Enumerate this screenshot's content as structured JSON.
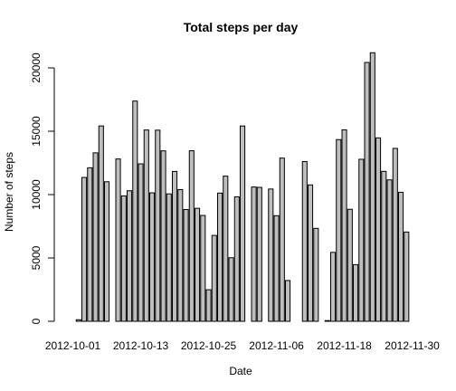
{
  "chart_data": {
    "type": "bar",
    "title": "Total steps per day",
    "xlabel": "Date",
    "ylabel": "Number of steps",
    "ylim": [
      0,
      21500
    ],
    "yticks": [
      0,
      5000,
      10000,
      15000,
      20000
    ],
    "xtick_labels": [
      {
        "category_index": 0,
        "label": "2012-10-01"
      },
      {
        "category_index": 12,
        "label": "2012-10-13"
      },
      {
        "category_index": 24,
        "label": "2012-10-25"
      },
      {
        "category_index": 36,
        "label": "2012-11-06"
      },
      {
        "category_index": 48,
        "label": "2012-11-18"
      },
      {
        "category_index": 60,
        "label": "2012-11-30"
      }
    ],
    "categories": [
      "2012-10-01",
      "2012-10-02",
      "2012-10-03",
      "2012-10-04",
      "2012-10-05",
      "2012-10-06",
      "2012-10-07",
      "2012-10-08",
      "2012-10-09",
      "2012-10-10",
      "2012-10-11",
      "2012-10-12",
      "2012-10-13",
      "2012-10-14",
      "2012-10-15",
      "2012-10-16",
      "2012-10-17",
      "2012-10-18",
      "2012-10-19",
      "2012-10-20",
      "2012-10-21",
      "2012-10-22",
      "2012-10-23",
      "2012-10-24",
      "2012-10-25",
      "2012-10-26",
      "2012-10-27",
      "2012-10-28",
      "2012-10-29",
      "2012-10-30",
      "2012-10-31",
      "2012-11-01",
      "2012-11-02",
      "2012-11-03",
      "2012-11-04",
      "2012-11-05",
      "2012-11-06",
      "2012-11-07",
      "2012-11-08",
      "2012-11-09",
      "2012-11-10",
      "2012-11-11",
      "2012-11-12",
      "2012-11-13",
      "2012-11-14",
      "2012-11-15",
      "2012-11-16",
      "2012-11-17",
      "2012-11-18",
      "2012-11-19",
      "2012-11-20",
      "2012-11-21",
      "2012-11-22",
      "2012-11-23",
      "2012-11-24",
      "2012-11-25",
      "2012-11-26",
      "2012-11-27",
      "2012-11-28",
      "2012-11-29",
      "2012-11-30"
    ],
    "values": [
      null,
      126,
      11352,
      12116,
      13294,
      15420,
      11015,
      null,
      12811,
      9900,
      10304,
      17382,
      12426,
      15098,
      10139,
      15084,
      13452,
      10056,
      11829,
      10395,
      8821,
      13460,
      8918,
      8355,
      2492,
      6778,
      10119,
      11458,
      5018,
      9819,
      15414,
      null,
      10600,
      10571,
      null,
      10439,
      8334,
      12883,
      3219,
      null,
      null,
      12608,
      10765,
      7336,
      null,
      41,
      5441,
      14339,
      15110,
      8841,
      4472,
      12787,
      20427,
      21194,
      14478,
      11834,
      11162,
      13646,
      10183,
      7047,
      null
    ]
  }
}
